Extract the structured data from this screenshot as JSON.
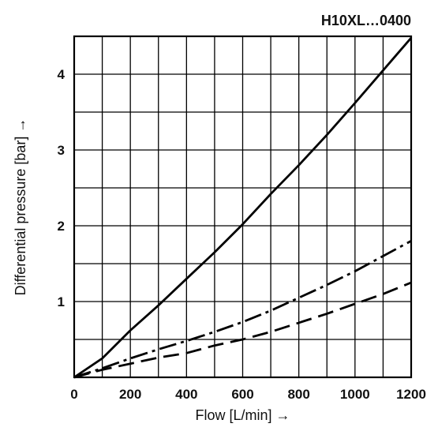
{
  "chart_data": {
    "type": "line",
    "title": "H10XL…0400",
    "xlabel": "Flow [L/min] →",
    "ylabel": "Differential pressure [bar] →",
    "xlim": [
      0,
      1200
    ],
    "ylim": [
      0,
      4.5
    ],
    "x_ticks": [
      "0",
      "200",
      "400",
      "600",
      "800",
      "1000",
      "1200"
    ],
    "y_ticks": [
      "1",
      "2",
      "3",
      "4"
    ],
    "grid": true,
    "series": [
      {
        "style": "solid",
        "x": [
          0,
          100,
          200,
          300,
          400,
          500,
          600,
          700,
          800,
          900,
          1000,
          1100,
          1200
        ],
        "y": [
          0,
          0.25,
          0.62,
          0.95,
          1.3,
          1.65,
          2.02,
          2.42,
          2.8,
          3.2,
          3.62,
          4.05,
          4.48
        ]
      },
      {
        "style": "dash-dot",
        "x": [
          0,
          100,
          200,
          300,
          400,
          500,
          600,
          700,
          800,
          900,
          1000,
          1100,
          1200
        ],
        "y": [
          0,
          0.12,
          0.25,
          0.37,
          0.48,
          0.6,
          0.73,
          0.88,
          1.05,
          1.22,
          1.4,
          1.6,
          1.8
        ]
      },
      {
        "style": "dashed",
        "x": [
          0,
          100,
          200,
          300,
          400,
          500,
          600,
          700,
          800,
          900,
          1000,
          1100,
          1200
        ],
        "y": [
          0,
          0.1,
          0.18,
          0.26,
          0.32,
          0.42,
          0.5,
          0.6,
          0.72,
          0.84,
          0.97,
          1.1,
          1.25
        ]
      }
    ]
  }
}
